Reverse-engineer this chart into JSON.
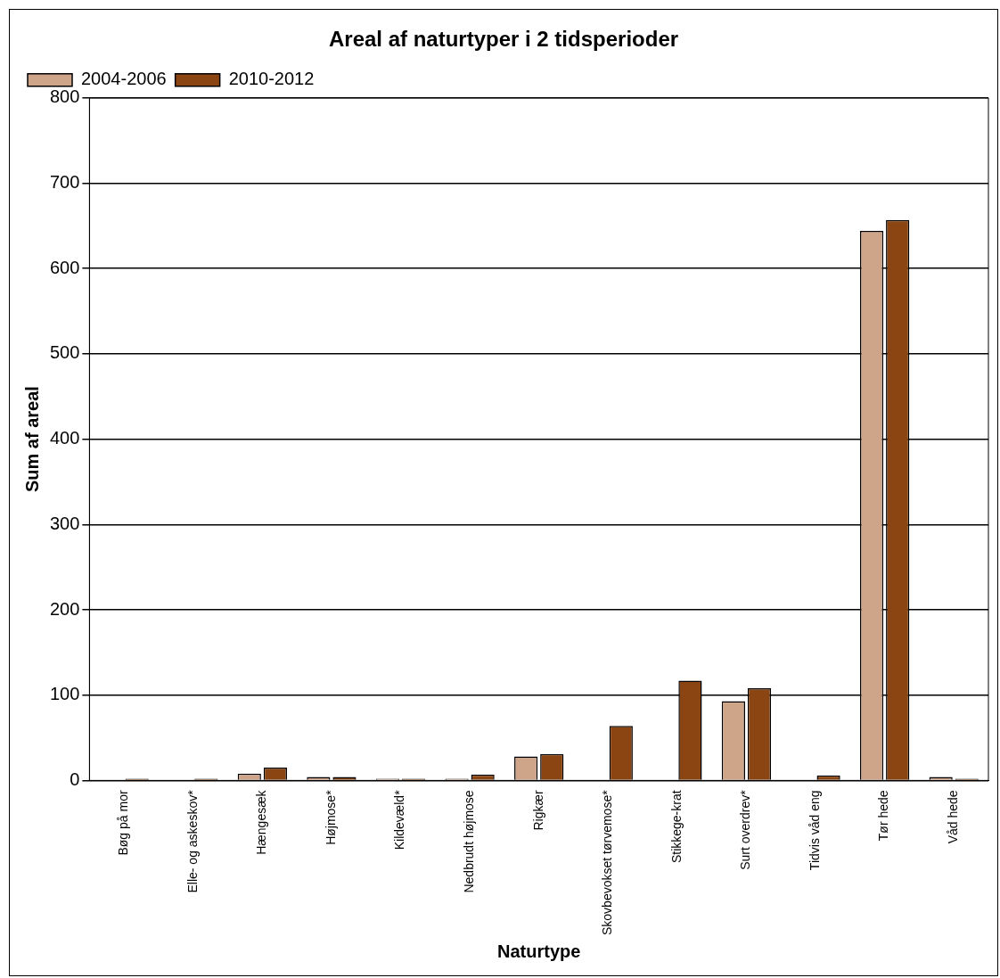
{
  "chart_data": {
    "type": "bar",
    "title": "Areal af naturtyper i 2 tidsperioder",
    "xlabel": "Naturtype",
    "ylabel": "Sum af areal",
    "categories": [
      "Bøg på mor",
      "Elle- og askeskov*",
      "Hængesæk",
      "Højmose*",
      "Kildevæld*",
      "Nedbrudt højmose",
      "Rigkær",
      "Skovbevokset tørvemose*",
      "Stikkege-krat",
      "Surt overdrev*",
      "Tidvis våd eng",
      "Tør hede",
      "Våd hede"
    ],
    "series": [
      {
        "name": "2004-2006",
        "color": "#cfa58a",
        "values": [
          null,
          null,
          8,
          4,
          2,
          2,
          28,
          null,
          null,
          93,
          null,
          644,
          4
        ]
      },
      {
        "name": "2010-2012",
        "color": "#8b4513",
        "values": [
          2,
          2,
          15,
          4,
          2,
          7,
          31,
          64,
          117,
          108,
          6,
          657,
          2
        ]
      }
    ],
    "ylim": [
      0,
      800
    ],
    "yticks": [
      0,
      100,
      200,
      300,
      400,
      500,
      600,
      700,
      800
    ],
    "grid": "y",
    "legend": "top left"
  }
}
